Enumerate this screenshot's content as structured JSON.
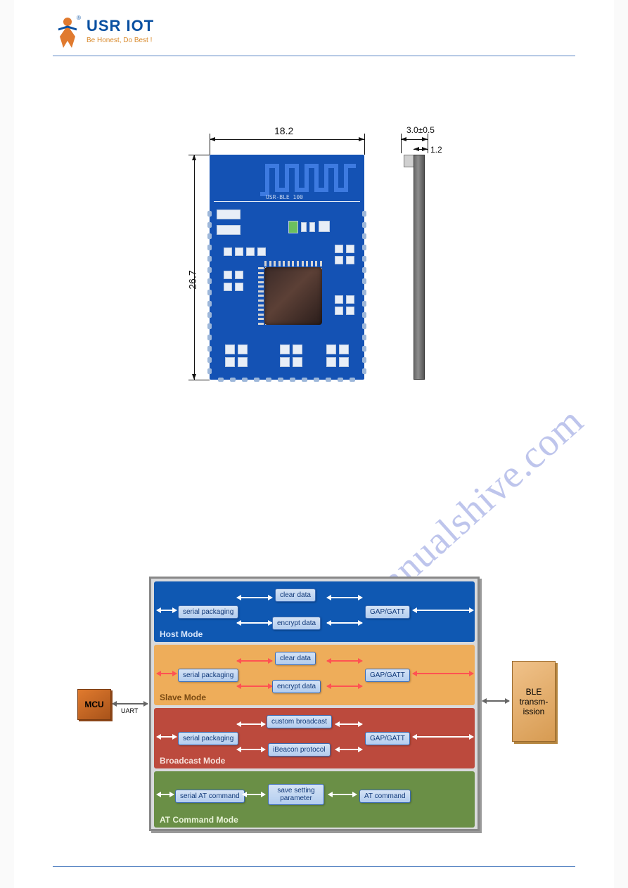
{
  "header": {
    "brand": "USR IOT",
    "tagline": "Be Honest, Do Best !",
    "brand_color": "#0a50a1",
    "tagline_color": "#d98b2e"
  },
  "watermark": {
    "text": "manualshive.com",
    "color": "rgba(70,90,200,0.35)"
  },
  "pcb": {
    "board_color": "#1452b4",
    "silkscreen_text": "USR-BLE 100",
    "dimensions": {
      "width_mm": "18.2",
      "height_mm": "26.7",
      "thickness_mm": "3.0±0.5",
      "pcb_thickness_mm": "1.2"
    }
  },
  "diagram": {
    "mcu_label": "MCU",
    "uart_label": "UART",
    "ble_label": "BLE transm-ission",
    "modes": [
      {
        "title": "Host Mode",
        "bg_color": "#0f58b2",
        "title_color": "#d8e6fb",
        "nodes": {
          "left": "serial packaging",
          "mid_top": "clear data",
          "mid_bot": "encrypt data",
          "right": "GAP/GATT"
        }
      },
      {
        "title": "Slave Mode",
        "bg_color": "#eead5a",
        "title_color": "#7a4a12",
        "nodes": {
          "left": "serial packaging",
          "mid_top": "clear data",
          "mid_bot": "encrypt data",
          "right": "GAP/GATT"
        }
      },
      {
        "title": "Broadcast Mode",
        "bg_color": "#bc4a3d",
        "title_color": "#f7e0da",
        "nodes": {
          "left": "serial packaging",
          "mid_top": "custom broadcast",
          "mid_bot": "iBeacon protocol",
          "right": "GAP/GATT"
        }
      },
      {
        "title": "AT Command Mode",
        "bg_color": "#6a8f46",
        "title_color": "#e9f3d8",
        "nodes": {
          "left": "serial AT command",
          "mid": "save setting parameter",
          "right": "AT command"
        }
      }
    ]
  }
}
